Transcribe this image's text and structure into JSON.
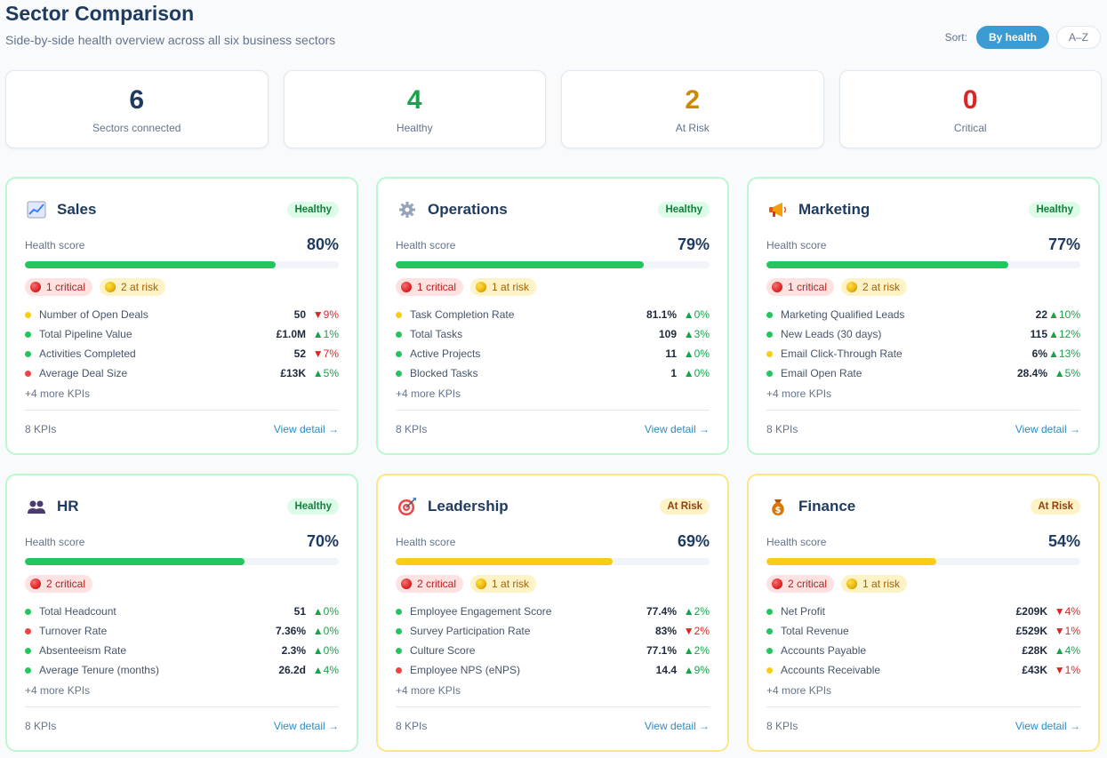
{
  "header": {
    "title": "Sector Comparison",
    "subtitle": "Side-by-side health overview across all six business sectors",
    "sort_label": "Sort:",
    "sort_options": [
      "By health",
      "A–Z"
    ]
  },
  "stats": [
    {
      "value": "6",
      "label": "Sectors connected",
      "color": "#1e3a5f"
    },
    {
      "value": "4",
      "label": "Healthy",
      "color": "#16a34a"
    },
    {
      "value": "2",
      "label": "At Risk",
      "color": "#ca8a04"
    },
    {
      "value": "0",
      "label": "Critical",
      "color": "#dc2626"
    }
  ],
  "colors": {
    "healthy": "#22c55e",
    "at_risk": "#facc15",
    "critical": "#ef4444"
  },
  "sectors": [
    {
      "name": "Sales",
      "icon": "chart-increasing-icon",
      "status": "Healthy",
      "score_label": "Health score",
      "score": "80%",
      "score_value": 0.8,
      "critical_label": "1 critical",
      "at_risk_label": "2 at risk",
      "kpis": [
        {
          "name": "Number of Open Deals",
          "value": "50",
          "delta": "▼9%",
          "dir": "down",
          "status": "at_risk"
        },
        {
          "name": "Total Pipeline Value",
          "value": "£1.0M",
          "delta": "▲1%",
          "dir": "up",
          "status": "healthy"
        },
        {
          "name": "Activities Completed",
          "value": "52",
          "delta": "▼7%",
          "dir": "down",
          "status": "healthy"
        },
        {
          "name": "Average Deal Size",
          "value": "£13K",
          "delta": "▲5%",
          "dir": "up",
          "status": "critical"
        }
      ],
      "more": "+4 more KPIs",
      "kpi_count": "8 KPIs",
      "view_detail": "View detail →"
    },
    {
      "name": "Operations",
      "icon": "gear-icon",
      "status": "Healthy",
      "score_label": "Health score",
      "score": "79%",
      "score_value": 0.79,
      "critical_label": "1 critical",
      "at_risk_label": "1 at risk",
      "kpis": [
        {
          "name": "Task Completion Rate",
          "value": "81.1%",
          "delta": "▲0%",
          "dir": "up",
          "status": "at_risk"
        },
        {
          "name": "Total Tasks",
          "value": "109",
          "delta": "▲3%",
          "dir": "up",
          "status": "healthy"
        },
        {
          "name": "Active Projects",
          "value": "11",
          "delta": "▲0%",
          "dir": "up",
          "status": "healthy"
        },
        {
          "name": "Blocked Tasks",
          "value": "1",
          "delta": "▲0%",
          "dir": "up",
          "status": "healthy"
        }
      ],
      "more": "+4 more KPIs",
      "kpi_count": "8 KPIs",
      "view_detail": "View detail →"
    },
    {
      "name": "Marketing",
      "icon": "megaphone-icon",
      "status": "Healthy",
      "score_label": "Health score",
      "score": "77%",
      "score_value": 0.77,
      "critical_label": "1 critical",
      "at_risk_label": "2 at risk",
      "kpis": [
        {
          "name": "Marketing Qualified Leads",
          "value": "22",
          "delta": "▲10%",
          "dir": "up",
          "status": "healthy"
        },
        {
          "name": "New Leads (30 days)",
          "value": "115",
          "delta": "▲12%",
          "dir": "up",
          "status": "healthy"
        },
        {
          "name": "Email Click-Through Rate",
          "value": "6%",
          "delta": "▲13%",
          "dir": "up",
          "status": "at_risk"
        },
        {
          "name": "Email Open Rate",
          "value": "28.4%",
          "delta": "▲5%",
          "dir": "up",
          "status": "healthy"
        }
      ],
      "more": "+4 more KPIs",
      "kpi_count": "8 KPIs",
      "view_detail": "View detail →"
    },
    {
      "name": "HR",
      "icon": "people-icon",
      "status": "Healthy",
      "score_label": "Health score",
      "score": "70%",
      "score_value": 0.7,
      "critical_label": "2 critical",
      "at_risk_label": "",
      "kpis": [
        {
          "name": "Total Headcount",
          "value": "51",
          "delta": "▲0%",
          "dir": "up",
          "status": "healthy"
        },
        {
          "name": "Turnover Rate",
          "value": "7.36%",
          "delta": "▲0%",
          "dir": "up",
          "status": "critical"
        },
        {
          "name": "Absenteeism Rate",
          "value": "2.3%",
          "delta": "▲0%",
          "dir": "up",
          "status": "healthy"
        },
        {
          "name": "Average Tenure (months)",
          "value": "26.2d",
          "delta": "▲4%",
          "dir": "up",
          "status": "healthy"
        }
      ],
      "more": "+4 more KPIs",
      "kpi_count": "8 KPIs",
      "view_detail": "View detail →"
    },
    {
      "name": "Leadership",
      "icon": "target-icon",
      "status": "At Risk",
      "score_label": "Health score",
      "score": "69%",
      "score_value": 0.69,
      "critical_label": "2 critical",
      "at_risk_label": "1 at risk",
      "kpis": [
        {
          "name": "Employee Engagement Score",
          "value": "77.4%",
          "delta": "▲2%",
          "dir": "up",
          "status": "healthy"
        },
        {
          "name": "Survey Participation Rate",
          "value": "83%",
          "delta": "▼2%",
          "dir": "down",
          "status": "healthy"
        },
        {
          "name": "Culture Score",
          "value": "77.1%",
          "delta": "▲2%",
          "dir": "up",
          "status": "healthy"
        },
        {
          "name": "Employee NPS (eNPS)",
          "value": "14.4",
          "delta": "▲9%",
          "dir": "up",
          "status": "critical"
        }
      ],
      "more": "+4 more KPIs",
      "kpi_count": "8 KPIs",
      "view_detail": "View detail →"
    },
    {
      "name": "Finance",
      "icon": "money-bag-icon",
      "status": "At Risk",
      "score_label": "Health score",
      "score": "54%",
      "score_value": 0.54,
      "critical_label": "2 critical",
      "at_risk_label": "1 at risk",
      "kpis": [
        {
          "name": "Net Profit",
          "value": "£209K",
          "delta": "▼4%",
          "dir": "down",
          "status": "healthy"
        },
        {
          "name": "Total Revenue",
          "value": "£529K",
          "delta": "▼1%",
          "dir": "down",
          "status": "healthy"
        },
        {
          "name": "Accounts Payable",
          "value": "£28K",
          "delta": "▲4%",
          "dir": "up",
          "status": "healthy"
        },
        {
          "name": "Accounts Receivable",
          "value": "£43K",
          "delta": "▼1%",
          "dir": "down",
          "status": "at_risk"
        }
      ],
      "more": "+4 more KPIs",
      "kpi_count": "8 KPIs",
      "view_detail": "View detail →"
    }
  ]
}
